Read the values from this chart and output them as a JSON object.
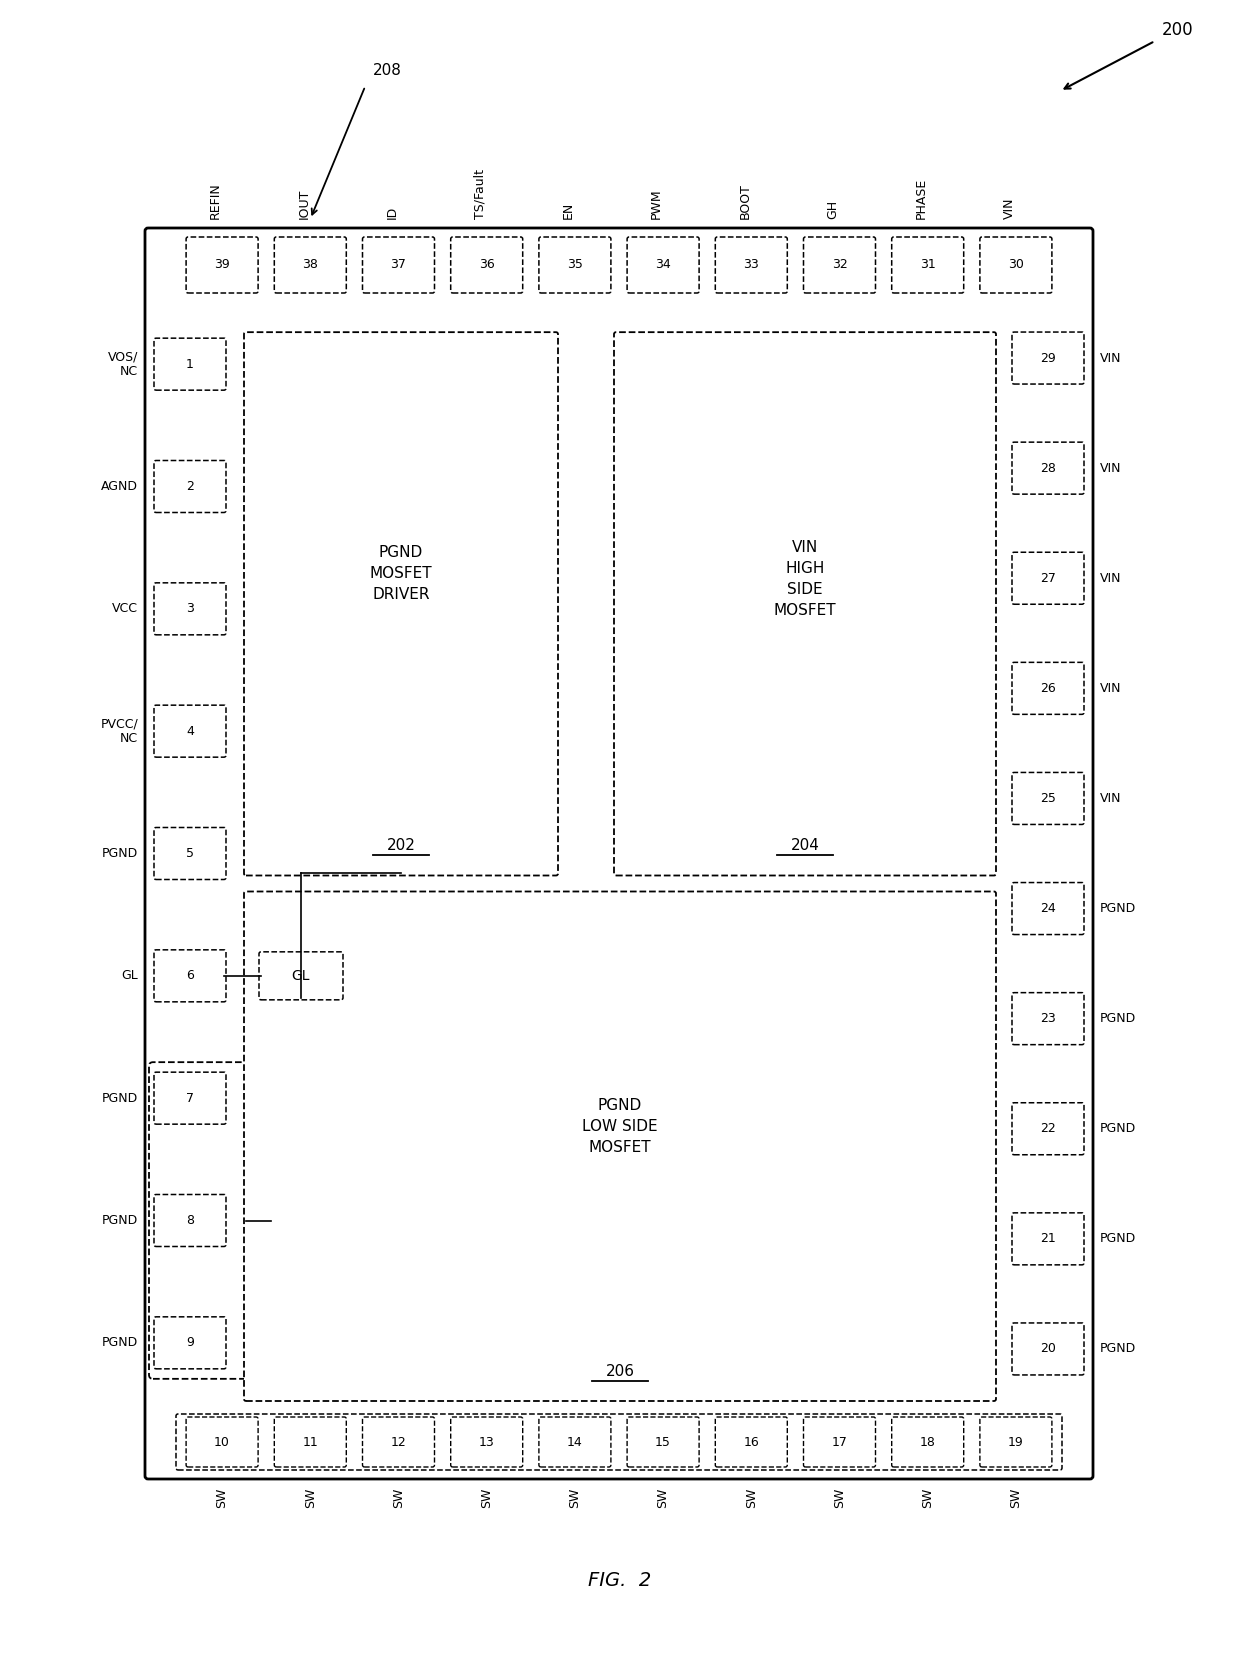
{
  "fig_width": 12.4,
  "fig_height": 16.61,
  "bg_color": "#ffffff",
  "top_pins": [
    {
      "num": 39,
      "label": "REFIN"
    },
    {
      "num": 38,
      "label": "IOUT"
    },
    {
      "num": 37,
      "label": "ID"
    },
    {
      "num": 36,
      "label": "TS/Fault"
    },
    {
      "num": 35,
      "label": "EN"
    },
    {
      "num": 34,
      "label": "PWM"
    },
    {
      "num": 33,
      "label": "BOOT"
    },
    {
      "num": 32,
      "label": "GH"
    },
    {
      "num": 31,
      "label": "PHASE"
    },
    {
      "num": 30,
      "label": "VIN"
    }
  ],
  "bottom_pins": [
    {
      "num": 10,
      "label": "SW"
    },
    {
      "num": 11,
      "label": "SW"
    },
    {
      "num": 12,
      "label": "SW"
    },
    {
      "num": 13,
      "label": "SW"
    },
    {
      "num": 14,
      "label": "SW"
    },
    {
      "num": 15,
      "label": "SW"
    },
    {
      "num": 16,
      "label": "SW"
    },
    {
      "num": 17,
      "label": "SW"
    },
    {
      "num": 18,
      "label": "SW"
    },
    {
      "num": 19,
      "label": "SW"
    }
  ],
  "left_pins": [
    {
      "num": 1,
      "label": "VOS/\nNC"
    },
    {
      "num": 2,
      "label": "AGND"
    },
    {
      "num": 3,
      "label": "VCC"
    },
    {
      "num": 4,
      "label": "PVCC/\nNC"
    },
    {
      "num": 5,
      "label": "PGND"
    },
    {
      "num": 6,
      "label": "GL"
    },
    {
      "num": 7,
      "label": "PGND"
    },
    {
      "num": 8,
      "label": "PGND"
    },
    {
      "num": 9,
      "label": "PGND"
    }
  ],
  "right_pins": [
    {
      "num": 29,
      "label": "VIN"
    },
    {
      "num": 28,
      "label": "VIN"
    },
    {
      "num": 27,
      "label": "VIN"
    },
    {
      "num": 26,
      "label": "VIN"
    },
    {
      "num": 25,
      "label": "VIN"
    },
    {
      "num": 24,
      "label": "PGND"
    },
    {
      "num": 23,
      "label": "PGND"
    },
    {
      "num": 22,
      "label": "PGND"
    },
    {
      "num": 21,
      "label": "PGND"
    },
    {
      "num": 20,
      "label": "PGND"
    }
  ]
}
